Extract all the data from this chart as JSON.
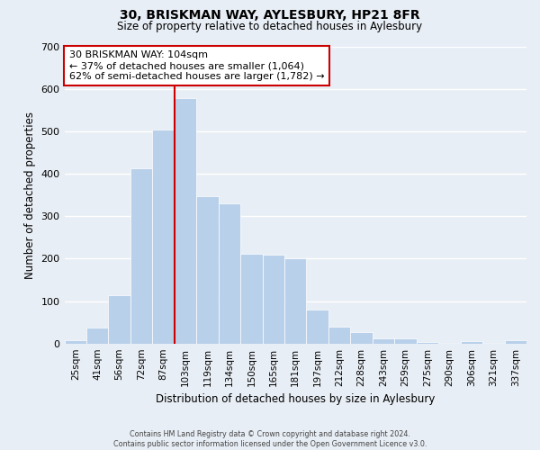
{
  "title1": "30, BRISKMAN WAY, AYLESBURY, HP21 8FR",
  "title2": "Size of property relative to detached houses in Aylesbury",
  "xlabel": "Distribution of detached houses by size in Aylesbury",
  "ylabel": "Number of detached properties",
  "bar_color": "#b8d0ea",
  "bar_edgecolor": "#ffffff",
  "background_color": "#e8eef5",
  "grid_color": "#ffffff",
  "categories": [
    "25sqm",
    "41sqm",
    "56sqm",
    "72sqm",
    "87sqm",
    "103sqm",
    "119sqm",
    "134sqm",
    "150sqm",
    "165sqm",
    "181sqm",
    "197sqm",
    "212sqm",
    "228sqm",
    "243sqm",
    "259sqm",
    "275sqm",
    "290sqm",
    "306sqm",
    "321sqm",
    "337sqm"
  ],
  "values": [
    8,
    38,
    113,
    413,
    503,
    578,
    346,
    330,
    212,
    210,
    201,
    80,
    40,
    27,
    13,
    13,
    4,
    0,
    5,
    0,
    7
  ],
  "ylim": [
    0,
    700
  ],
  "yticks": [
    0,
    100,
    200,
    300,
    400,
    500,
    600,
    700
  ],
  "marker_label": "30 BRISKMAN WAY: 104sqm",
  "annotation_line1": "← 37% of detached houses are smaller (1,064)",
  "annotation_line2": "62% of semi-detached houses are larger (1,782) →",
  "vline_color": "#cc0000",
  "box_edgecolor": "#cc0000",
  "footer1": "Contains HM Land Registry data © Crown copyright and database right 2024.",
  "footer2": "Contains public sector information licensed under the Open Government Licence v3.0."
}
